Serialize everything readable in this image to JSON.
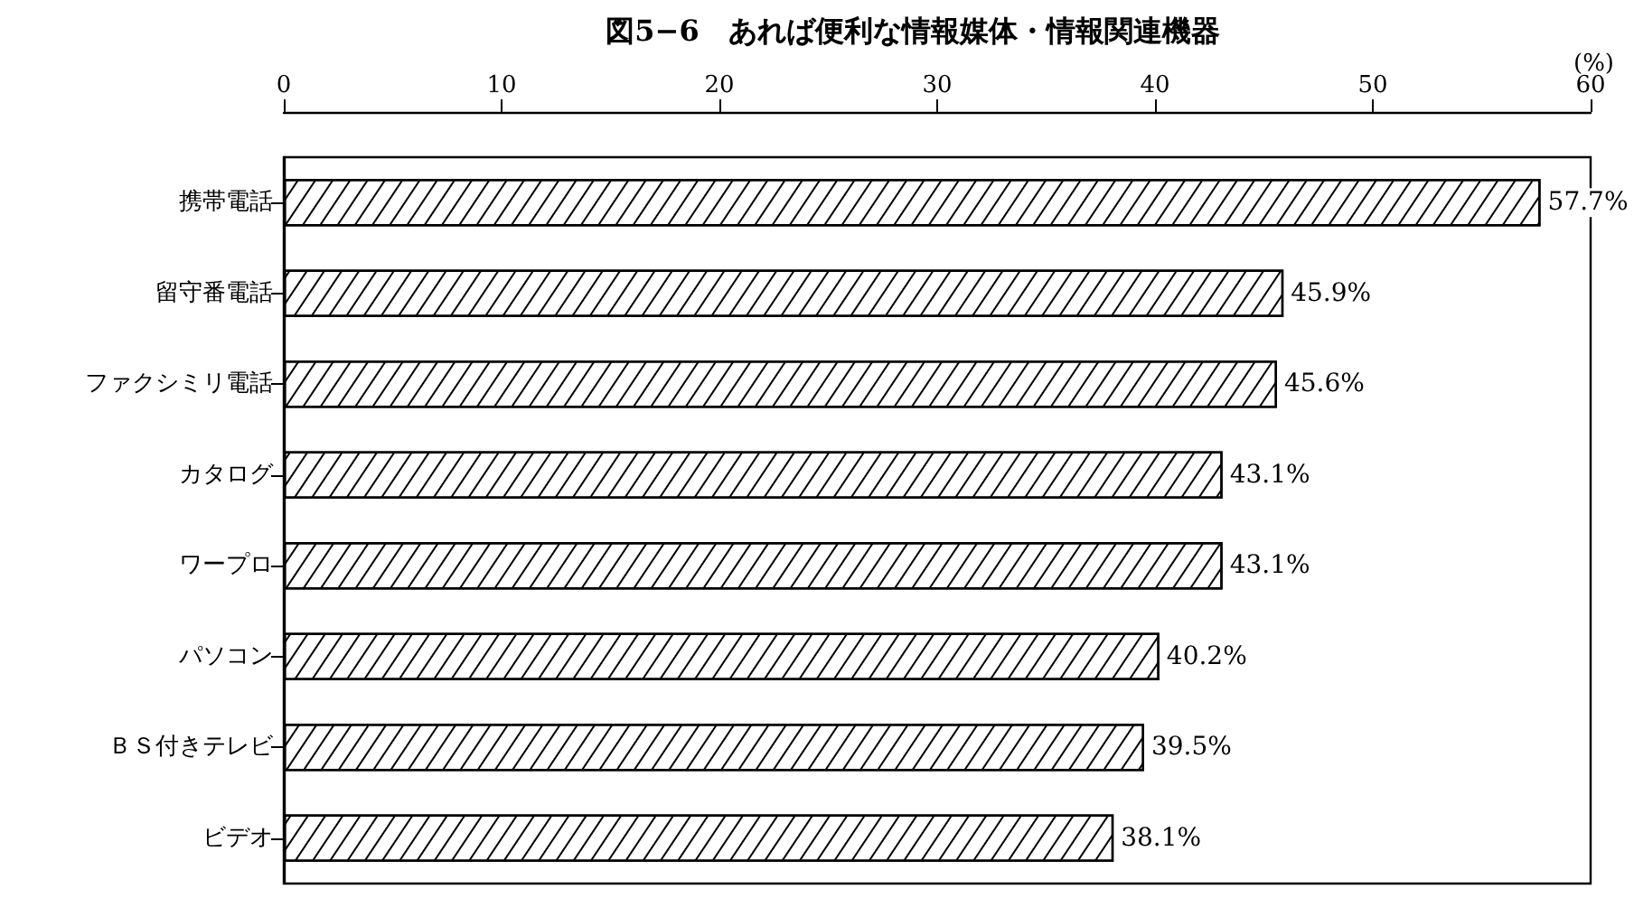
{
  "chart_data": {
    "type": "bar",
    "orientation": "horizontal",
    "title": "図5−6　あれば便利な情報媒体・情報関連機器",
    "xlabel": "(%)",
    "categories": [
      "携帯電話",
      "留守番電話",
      "ファクシミリ電話",
      "カタログ",
      "ワープロ",
      "パソコン",
      "ＢＳ付きテレビ",
      "ビデオ"
    ],
    "values": [
      57.7,
      45.9,
      45.6,
      43.1,
      43.1,
      40.2,
      39.5,
      38.1
    ],
    "value_labels": [
      "57.7%",
      "45.9%",
      "45.6%",
      "43.1%",
      "43.1%",
      "40.2%",
      "39.5%",
      "38.1%"
    ],
    "color": "#ffffff",
    "xlim": [
      0,
      60
    ],
    "xticks": [
      0,
      10,
      20,
      30,
      40,
      50,
      60
    ],
    "grid": false
  }
}
